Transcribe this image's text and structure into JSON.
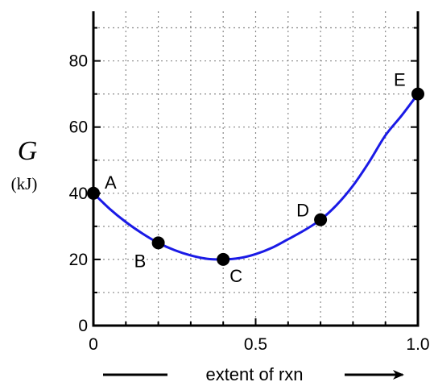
{
  "chart_data": {
    "type": "line",
    "title": "",
    "xlabel": "extent of rxn",
    "ylabel": "G",
    "ylabel_unit": "(kJ)",
    "xlim": [
      0,
      1
    ],
    "ylim": [
      0,
      95
    ],
    "xticks": [
      0,
      0.5,
      1.0
    ],
    "xtick_labels": [
      "0",
      "0.5",
      "1.0"
    ],
    "yticks": [
      0,
      20,
      40,
      60,
      80
    ],
    "ytick_labels": [
      "0",
      "20",
      "40",
      "60",
      "80"
    ],
    "grid": true,
    "line_color": "#1a1ae6",
    "point_color": "#000000",
    "curve": {
      "x": [
        0,
        0.05,
        0.1,
        0.15,
        0.2,
        0.25,
        0.3,
        0.35,
        0.4,
        0.45,
        0.5,
        0.55,
        0.6,
        0.65,
        0.7,
        0.75,
        0.8,
        0.85,
        0.9,
        0.95,
        1.0
      ],
      "y": [
        40,
        35.3,
        31.3,
        27.9,
        25,
        22.8,
        21.2,
        20.2,
        20,
        20.4,
        21.6,
        23.5,
        26.1,
        28.8,
        32,
        36.5,
        42.3,
        49.5,
        57.5,
        63.5,
        70
      ]
    },
    "points": [
      {
        "label": "A",
        "x": 0,
        "y": 40
      },
      {
        "label": "B",
        "x": 0.2,
        "y": 25
      },
      {
        "label": "C",
        "x": 0.4,
        "y": 20
      },
      {
        "label": "D",
        "x": 0.7,
        "y": 32
      },
      {
        "label": "E",
        "x": 1.0,
        "y": 70
      }
    ]
  }
}
